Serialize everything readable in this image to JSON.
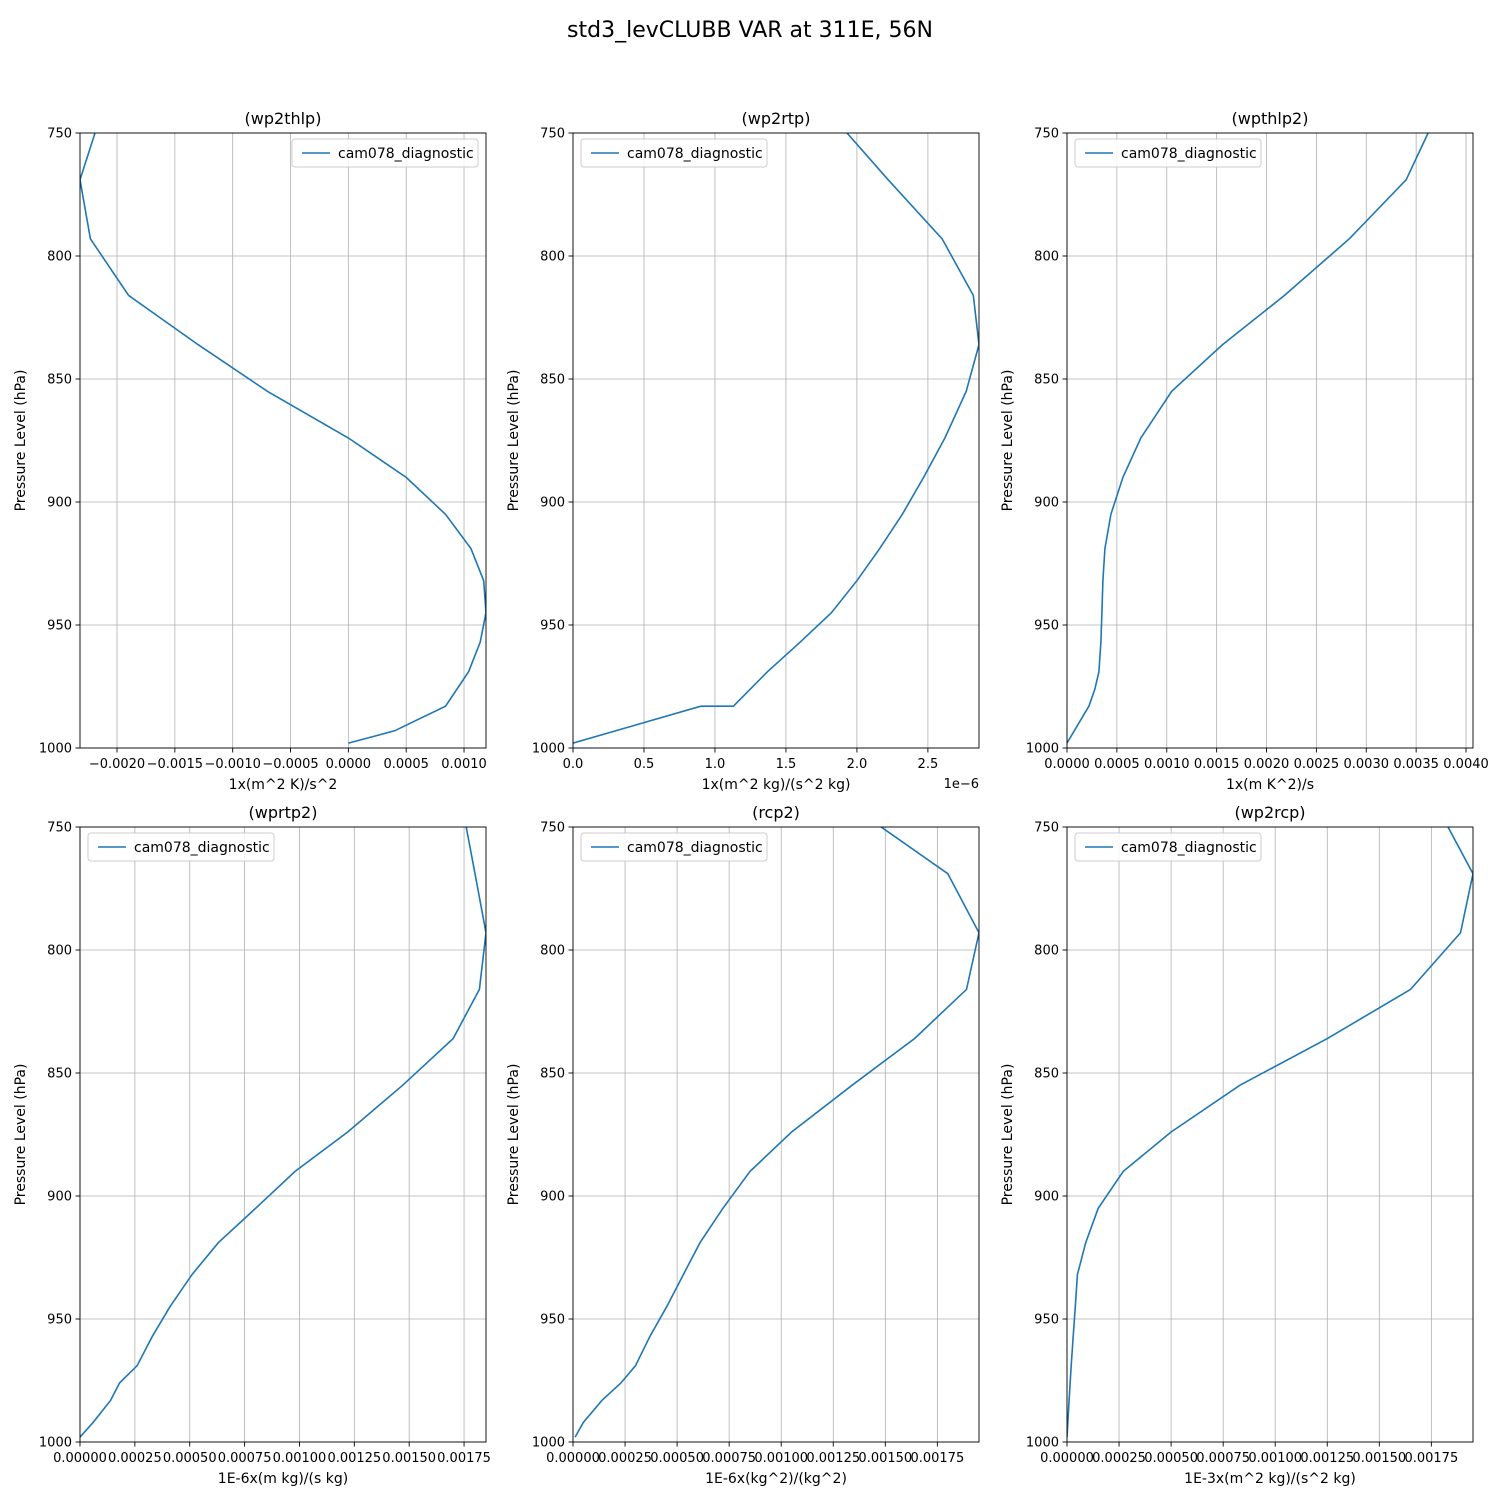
{
  "figure": {
    "title": "std3_levCLUBB VAR at 311E, 56N"
  },
  "chart_data": [
    {
      "type": "line",
      "title": "(wp2thlp)",
      "xlabel": "1x(m^2 K)/s^2",
      "ylabel": "Pressure Level (hPa)",
      "offset_text": "",
      "xlim": [
        -0.00232,
        0.00119
      ],
      "ylim": [
        1000,
        750
      ],
      "xticks": [
        -0.002,
        -0.0015,
        -0.001,
        -0.0005,
        0.0,
        0.0005,
        0.001
      ],
      "xtick_labels": [
        "−0.0020",
        "−0.0015",
        "−0.0010",
        "−0.0005",
        "0.0000",
        "0.0005",
        "0.0010"
      ],
      "yticks": [
        750,
        800,
        850,
        900,
        950,
        1000
      ],
      "ytick_labels": [
        "750",
        "800",
        "850",
        "900",
        "950",
        "1000"
      ],
      "grid": true,
      "legend_position": "top-right",
      "series": [
        {
          "name": "cam078_diagnostic",
          "x": [
            -0.00219,
            -0.00232,
            -0.00223,
            -0.0019,
            -0.0013,
            -0.0007,
            0.0,
            0.0005,
            0.00084,
            0.00106,
            0.00117,
            0.00119,
            0.00114,
            0.00104,
            0.00084,
            0.0004,
            0.0
          ],
          "y": [
            750,
            769,
            793,
            816,
            836,
            855,
            874,
            890,
            905,
            919,
            932,
            945,
            957,
            969,
            983,
            993,
            998
          ]
        }
      ]
    },
    {
      "type": "line",
      "title": "(wp2rtp)",
      "xlabel": "1x(m^2 kg)/(s^2 kg)",
      "ylabel": "Pressure Level (hPa)",
      "offset_text": "1e−6",
      "xlim": [
        0.0,
        2.86
      ],
      "ylim": [
        1000,
        750
      ],
      "xticks": [
        0.0,
        0.5,
        1.0,
        1.5,
        2.0,
        2.5
      ],
      "xtick_labels": [
        "0.0",
        "0.5",
        "1.0",
        "1.5",
        "2.0",
        "2.5"
      ],
      "yticks": [
        750,
        800,
        850,
        900,
        950,
        1000
      ],
      "ytick_labels": [
        "750",
        "800",
        "850",
        "900",
        "950",
        "1000"
      ],
      "grid": true,
      "legend_position": "top-left",
      "series": [
        {
          "name": "cam078_diagnostic",
          "x": [
            1.93,
            2.22,
            2.6,
            2.82,
            2.86,
            2.77,
            2.62,
            2.47,
            2.32,
            2.16,
            2.0,
            1.82,
            1.6,
            1.37,
            1.13,
            0.9,
            0.0
          ],
          "y": [
            750,
            769,
            793,
            816,
            836,
            855,
            874,
            890,
            905,
            919,
            932,
            945,
            957,
            969,
            983,
            983,
            998
          ]
        }
      ]
    },
    {
      "type": "line",
      "title": "(wpthlp2)",
      "xlabel": "1x(m K^2)/s",
      "ylabel": "Pressure Level (hPa)",
      "offset_text": "",
      "xlim": [
        0.0,
        0.00407
      ],
      "ylim": [
        1000,
        750
      ],
      "xticks": [
        0.0,
        0.0005,
        0.001,
        0.0015,
        0.002,
        0.0025,
        0.003,
        0.0035,
        0.004
      ],
      "xtick_labels": [
        "0.0000",
        "0.0005",
        "0.0010",
        "0.0015",
        "0.0020",
        "0.0025",
        "0.0030",
        "0.0035",
        "0.0040"
      ],
      "yticks": [
        750,
        800,
        850,
        900,
        950,
        1000
      ],
      "ytick_labels": [
        "750",
        "800",
        "850",
        "900",
        "950",
        "1000"
      ],
      "grid": true,
      "legend_position": "top-left",
      "series": [
        {
          "name": "cam078_diagnostic",
          "x": [
            0.00362,
            0.0034,
            0.00283,
            0.00218,
            0.00156,
            0.00105,
            0.00074,
            0.00056,
            0.00044,
            0.00038,
            0.00036,
            0.00035,
            0.00034,
            0.00032,
            0.00028,
            0.00022,
            0.0
          ],
          "y": [
            750,
            769,
            793,
            816,
            836,
            855,
            874,
            890,
            905,
            919,
            932,
            945,
            957,
            969,
            976,
            983,
            998
          ]
        }
      ]
    },
    {
      "type": "line",
      "title": "(wprtp2)",
      "xlabel": "1E-6x(m kg)/(s kg)",
      "ylabel": "Pressure Level (hPa)",
      "offset_text": "",
      "xlim": [
        0.0,
        0.00185
      ],
      "ylim": [
        1000,
        750
      ],
      "xticks": [
        0.0,
        0.00025,
        0.0005,
        0.00075,
        0.001,
        0.00125,
        0.0015,
        0.00175
      ],
      "xtick_labels": [
        "0.00000",
        "0.00025",
        "0.00050",
        "0.00075",
        "0.00100",
        "0.00125",
        "0.00150",
        "0.00175"
      ],
      "yticks": [
        750,
        800,
        850,
        900,
        950,
        1000
      ],
      "ytick_labels": [
        "750",
        "800",
        "850",
        "900",
        "950",
        "1000"
      ],
      "grid": true,
      "legend_position": "top-left",
      "series": [
        {
          "name": "cam078_diagnostic",
          "x": [
            0.00176,
            0.0018,
            0.00185,
            0.00182,
            0.0017,
            0.00147,
            0.00122,
            0.00098,
            0.0008,
            0.00063,
            0.00051,
            0.00041,
            0.00033,
            0.00026,
            0.00018,
            0.00014,
            6e-05,
            0.0
          ],
          "y": [
            750,
            769,
            793,
            816,
            836,
            855,
            874,
            890,
            905,
            919,
            932,
            945,
            957,
            969,
            976,
            983,
            992,
            998
          ]
        }
      ]
    },
    {
      "type": "line",
      "title": "(rcp2)",
      "xlabel": "1E-6x(kg^2)/(kg^2)",
      "ylabel": "Pressure Level (hPa)",
      "offset_text": "",
      "xlim": [
        0.0,
        0.00195
      ],
      "ylim": [
        1000,
        750
      ],
      "xticks": [
        0.0,
        0.00025,
        0.0005,
        0.00075,
        0.001,
        0.00125,
        0.0015,
        0.00175
      ],
      "xtick_labels": [
        "0.00000",
        "0.00025",
        "0.00050",
        "0.00075",
        "0.00100",
        "0.00125",
        "0.00150",
        "0.00175"
      ],
      "yticks": [
        750,
        800,
        850,
        900,
        950,
        1000
      ],
      "ytick_labels": [
        "750",
        "800",
        "850",
        "900",
        "950",
        "1000"
      ],
      "grid": true,
      "legend_position": "top-left",
      "series": [
        {
          "name": "cam078_diagnostic",
          "x": [
            0.00148,
            0.0018,
            0.00195,
            0.00189,
            0.00164,
            0.00134,
            0.00105,
            0.00085,
            0.00072,
            0.00061,
            0.00053,
            0.00045,
            0.00037,
            0.0003,
            0.00023,
            0.00014,
            5e-05,
            1e-05
          ],
          "y": [
            750,
            769,
            793,
            816,
            836,
            855,
            874,
            890,
            905,
            919,
            932,
            945,
            957,
            969,
            976,
            983,
            992,
            998
          ]
        }
      ]
    },
    {
      "type": "line",
      "title": "(wp2rcp)",
      "xlabel": "1E-3x(m^2 kg)/(s^2 kg)",
      "ylabel": "Pressure Level (hPa)",
      "offset_text": "",
      "xlim": [
        0.0,
        0.00195
      ],
      "ylim": [
        1000,
        750
      ],
      "xticks": [
        0.0,
        0.00025,
        0.0005,
        0.00075,
        0.001,
        0.00125,
        0.0015,
        0.00175
      ],
      "xtick_labels": [
        "0.00000",
        "0.00025",
        "0.00050",
        "0.00075",
        "0.00100",
        "0.00125",
        "0.00150",
        "0.00175"
      ],
      "yticks": [
        750,
        800,
        850,
        900,
        950,
        1000
      ],
      "ytick_labels": [
        "750",
        "800",
        "850",
        "900",
        "950",
        "1000"
      ],
      "grid": true,
      "legend_position": "top-left",
      "series": [
        {
          "name": "cam078_diagnostic",
          "x": [
            0.00183,
            0.00195,
            0.00189,
            0.00165,
            0.00125,
            0.00083,
            0.0005,
            0.00027,
            0.00015,
            9e-05,
            5e-05,
            4e-05,
            3e-05,
            2e-05,
            1e-05,
            0.0
          ],
          "y": [
            750,
            769,
            793,
            816,
            836,
            855,
            874,
            890,
            905,
            919,
            932,
            945,
            957,
            969,
            983,
            998
          ]
        }
      ]
    }
  ]
}
